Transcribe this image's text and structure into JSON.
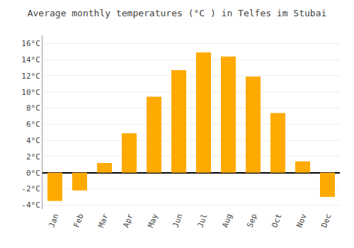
{
  "chart_data": {
    "type": "bar",
    "title": "Average monthly temperatures (°C ) in Telfes im Stubai",
    "categories": [
      "Jan",
      "Feb",
      "Mar",
      "Apr",
      "May",
      "Jun",
      "Jul",
      "Aug",
      "Sep",
      "Oct",
      "Nov",
      "Dec"
    ],
    "values": [
      -3.5,
      -2.2,
      1.2,
      4.9,
      9.4,
      12.7,
      14.9,
      14.4,
      11.9,
      7.4,
      1.4,
      -3.0
    ],
    "color": "#FFAA00",
    "ylim": [
      -4.5,
      17.0
    ],
    "yticks": [
      {
        "value": -4,
        "label": "-4°C"
      },
      {
        "value": -2,
        "label": "-2°C"
      },
      {
        "value": 0,
        "label": "0°C"
      },
      {
        "value": 2,
        "label": "2°C"
      },
      {
        "value": 4,
        "label": "4°C"
      },
      {
        "value": 6,
        "label": "6°C"
      },
      {
        "value": 8,
        "label": "8°C"
      },
      {
        "value": 10,
        "label": "10°C"
      },
      {
        "value": 12,
        "label": "12°C"
      },
      {
        "value": 14,
        "label": "14°C"
      },
      {
        "value": 16,
        "label": "16°C"
      }
    ],
    "grid": true
  }
}
